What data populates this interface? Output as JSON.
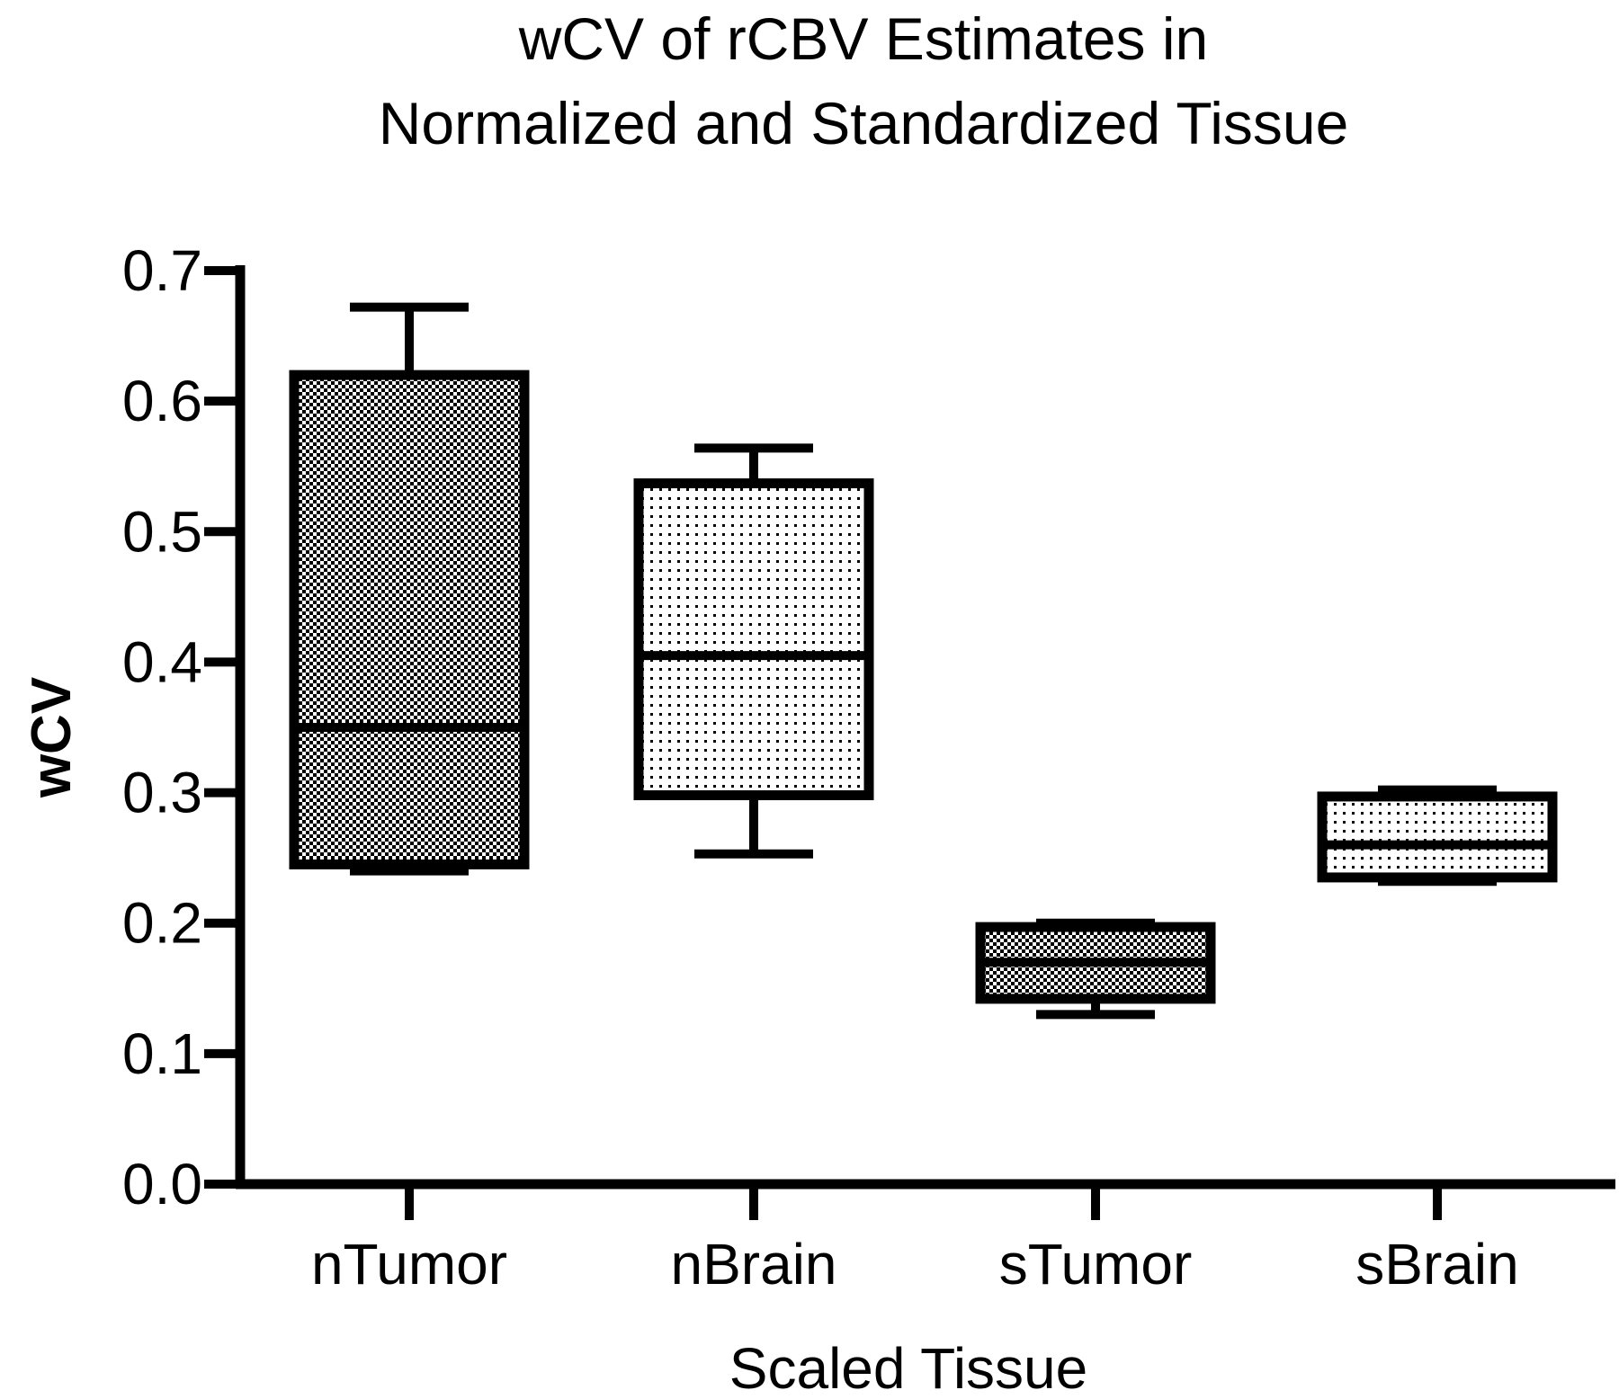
{
  "chart_data": {
    "type": "box",
    "title_lines": [
      "wCV of rCBV Estimates in",
      "Normalized and Standardized Tissue"
    ],
    "xlabel": "Scaled Tissue",
    "ylabel": "wCV",
    "ylim": [
      0,
      0.7
    ],
    "y_ticks": [
      0.0,
      0.1,
      0.2,
      0.3,
      0.4,
      0.5,
      0.6,
      0.7
    ],
    "y_tick_labels": [
      "0.0",
      "0.1",
      "0.2",
      "0.3",
      "0.4",
      "0.5",
      "0.6",
      "0.7"
    ],
    "categories": [
      "nTumor",
      "nBrain",
      "sTumor",
      "sBrain"
    ],
    "boxes": [
      {
        "category": "nTumor",
        "min": 0.24,
        "q1": 0.245,
        "median": 0.35,
        "q3": 0.62,
        "max": 0.672,
        "pattern": "checker"
      },
      {
        "category": "nBrain",
        "min": 0.253,
        "q1": 0.298,
        "median": 0.405,
        "q3": 0.537,
        "max": 0.564,
        "pattern": "dots"
      },
      {
        "category": "sTumor",
        "min": 0.13,
        "q1": 0.142,
        "median": 0.17,
        "q3": 0.197,
        "max": 0.2,
        "pattern": "checker"
      },
      {
        "category": "sBrain",
        "min": 0.232,
        "q1": 0.235,
        "median": 0.26,
        "q3": 0.297,
        "max": 0.302,
        "pattern": "dots"
      }
    ],
    "grid": false,
    "legend": "none",
    "colors": {
      "axis": "#000000",
      "box_stroke": "#000000",
      "background": "#ffffff"
    }
  }
}
